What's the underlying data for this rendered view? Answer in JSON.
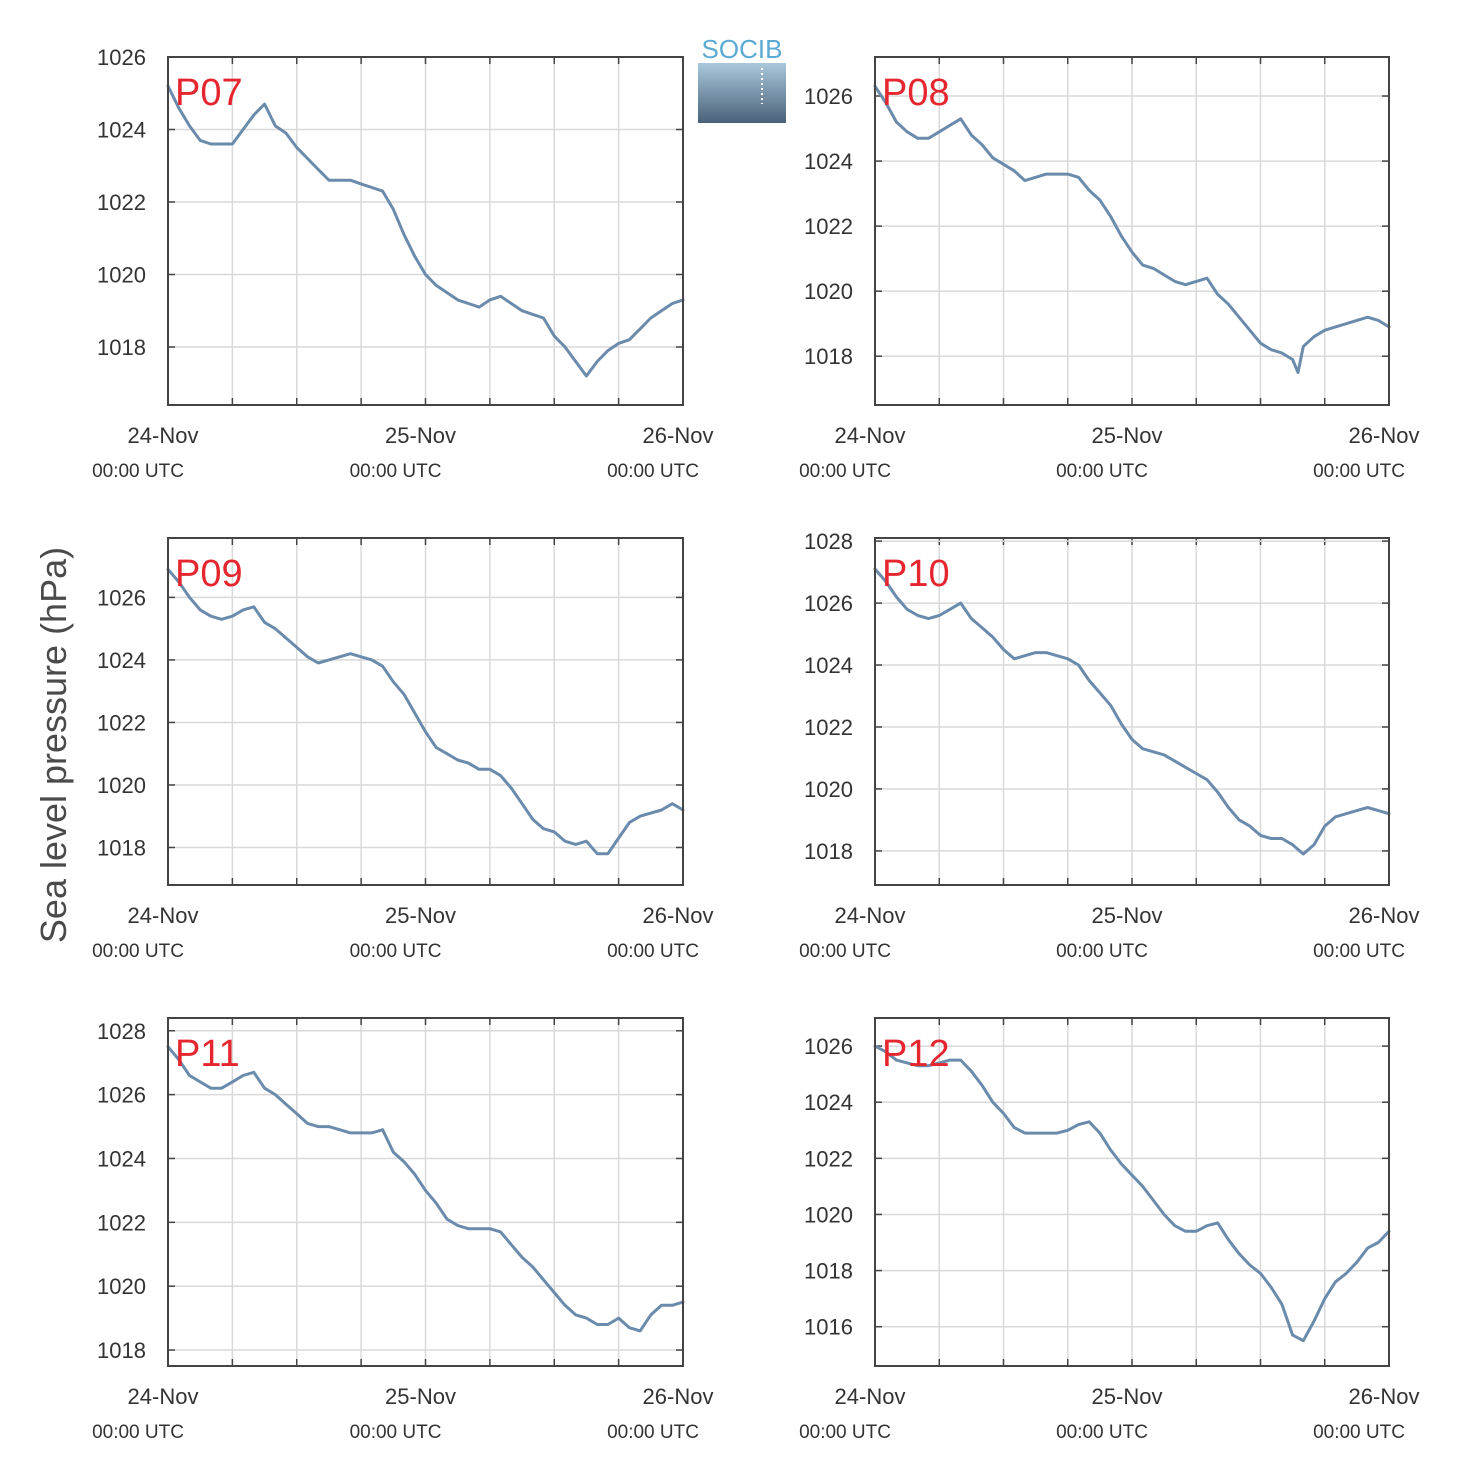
{
  "ylabel": "Sea level pressure (hPa)",
  "logo": {
    "text": "SOCIB"
  },
  "colors": {
    "line": "#6a8bab",
    "grid": "#d9d9d9",
    "frame": "#444444",
    "label": "#e5262e",
    "logo_text": "#5aaad4",
    "logo_top": "#a9c8dc",
    "logo_bottom": "#4a6178"
  },
  "x_ticks": [
    {
      "day": "24-Nov",
      "time": "00:00 UTC"
    },
    {
      "day": "25-Nov",
      "time": "00:00 UTC"
    },
    {
      "day": "26-Nov",
      "time": "00:00 UTC"
    }
  ],
  "chart_data": [
    {
      "type": "line",
      "label": "P07",
      "xlim": [
        0,
        48
      ],
      "ylim": [
        1016.4,
        1026
      ],
      "yticks": [
        1018,
        1020,
        1022,
        1024,
        1026
      ],
      "x": [
        0,
        1,
        2,
        3,
        4,
        5,
        6,
        7,
        8,
        9,
        10,
        11,
        12,
        13,
        14,
        15,
        16,
        17,
        18,
        19,
        20,
        21,
        22,
        23,
        24,
        25,
        26,
        27,
        28,
        29,
        30,
        31,
        32,
        33,
        34,
        35,
        36,
        37,
        38,
        39,
        40,
        41,
        42,
        43,
        44,
        45,
        46,
        47,
        48
      ],
      "y": [
        1025.2,
        1024.6,
        1024.1,
        1023.7,
        1023.6,
        1023.6,
        1023.6,
        1024.0,
        1024.4,
        1024.7,
        1024.1,
        1023.9,
        1023.5,
        1023.2,
        1022.9,
        1022.6,
        1022.6,
        1022.6,
        1022.5,
        1022.4,
        1022.3,
        1021.8,
        1021.1,
        1020.5,
        1020.0,
        1019.7,
        1019.5,
        1019.3,
        1019.2,
        1019.1,
        1019.3,
        1019.4,
        1019.2,
        1019.0,
        1018.9,
        1018.8,
        1018.3,
        1018.0,
        1017.6,
        1017.2,
        1017.6,
        1017.9,
        1018.1,
        1018.2,
        1018.5,
        1018.8,
        1019.0,
        1019.2,
        1019.3
      ]
    },
    {
      "type": "line",
      "label": "P08",
      "xlim": [
        0,
        48
      ],
      "ylim": [
        1016.5,
        1027.2
      ],
      "yticks": [
        1018,
        1020,
        1022,
        1024,
        1026
      ],
      "x": [
        0,
        1,
        2,
        3,
        4,
        5,
        6,
        7,
        8,
        9,
        10,
        11,
        12,
        13,
        14,
        15,
        16,
        17,
        18,
        19,
        20,
        21,
        22,
        23,
        24,
        25,
        26,
        27,
        28,
        29,
        30,
        31,
        32,
        33,
        34,
        35,
        36,
        37,
        38,
        39,
        39.5,
        40,
        41,
        42,
        43,
        44,
        45,
        46,
        47,
        48
      ],
      "y": [
        1026.3,
        1025.8,
        1025.2,
        1024.9,
        1024.7,
        1024.7,
        1024.9,
        1025.1,
        1025.3,
        1024.8,
        1024.5,
        1024.1,
        1023.9,
        1023.7,
        1023.4,
        1023.5,
        1023.6,
        1023.6,
        1023.6,
        1023.5,
        1023.1,
        1022.8,
        1022.3,
        1021.7,
        1021.2,
        1020.8,
        1020.7,
        1020.5,
        1020.3,
        1020.2,
        1020.3,
        1020.4,
        1019.9,
        1019.6,
        1019.2,
        1018.8,
        1018.4,
        1018.2,
        1018.1,
        1017.9,
        1017.5,
        1018.3,
        1018.6,
        1018.8,
        1018.9,
        1019.0,
        1019.1,
        1019.2,
        1019.1,
        1018.9
      ]
    },
    {
      "type": "line",
      "label": "P09",
      "xlim": [
        0,
        48
      ],
      "ylim": [
        1016.8,
        1027.9
      ],
      "yticks": [
        1018,
        1020,
        1022,
        1024,
        1026
      ],
      "x": [
        0,
        1,
        2,
        3,
        4,
        5,
        6,
        7,
        8,
        9,
        10,
        11,
        12,
        13,
        14,
        15,
        16,
        17,
        18,
        19,
        20,
        21,
        22,
        23,
        24,
        25,
        26,
        27,
        28,
        29,
        30,
        31,
        32,
        33,
        34,
        35,
        36,
        37,
        38,
        39,
        40,
        41,
        42,
        43,
        44,
        45,
        46,
        47,
        48
      ],
      "y": [
        1026.9,
        1026.5,
        1026.0,
        1025.6,
        1025.4,
        1025.3,
        1025.4,
        1025.6,
        1025.7,
        1025.2,
        1025.0,
        1024.7,
        1024.4,
        1024.1,
        1023.9,
        1024.0,
        1024.1,
        1024.2,
        1024.1,
        1024.0,
        1023.8,
        1023.3,
        1022.9,
        1022.3,
        1021.7,
        1021.2,
        1021.0,
        1020.8,
        1020.7,
        1020.5,
        1020.5,
        1020.3,
        1019.9,
        1019.4,
        1018.9,
        1018.6,
        1018.5,
        1018.2,
        1018.1,
        1018.2,
        1017.8,
        1017.8,
        1018.3,
        1018.8,
        1019.0,
        1019.1,
        1019.2,
        1019.4,
        1019.2
      ]
    },
    {
      "type": "line",
      "label": "P10",
      "xlim": [
        0,
        48
      ],
      "ylim": [
        1016.9,
        1028.1
      ],
      "yticks": [
        1018,
        1020,
        1022,
        1024,
        1026,
        1028
      ],
      "x": [
        0,
        1,
        2,
        3,
        4,
        5,
        6,
        7,
        8,
        9,
        10,
        11,
        12,
        13,
        14,
        15,
        16,
        17,
        18,
        19,
        20,
        21,
        22,
        23,
        24,
        25,
        26,
        27,
        28,
        29,
        30,
        31,
        32,
        33,
        34,
        35,
        36,
        37,
        38,
        39,
        40,
        41,
        42,
        43,
        44,
        45,
        46,
        47,
        48
      ],
      "y": [
        1027.1,
        1026.7,
        1026.2,
        1025.8,
        1025.6,
        1025.5,
        1025.6,
        1025.8,
        1026.0,
        1025.5,
        1025.2,
        1024.9,
        1024.5,
        1024.2,
        1024.3,
        1024.4,
        1024.4,
        1024.3,
        1024.2,
        1024.0,
        1023.5,
        1023.1,
        1022.7,
        1022.1,
        1021.6,
        1021.3,
        1021.2,
        1021.1,
        1020.9,
        1020.7,
        1020.5,
        1020.3,
        1019.9,
        1019.4,
        1019.0,
        1018.8,
        1018.5,
        1018.4,
        1018.4,
        1018.2,
        1017.9,
        1018.2,
        1018.8,
        1019.1,
        1019.2,
        1019.3,
        1019.4,
        1019.3,
        1019.2
      ]
    },
    {
      "type": "line",
      "label": "P11",
      "xlim": [
        0,
        48
      ],
      "ylim": [
        1017.5,
        1028.4
      ],
      "yticks": [
        1018,
        1020,
        1022,
        1024,
        1026,
        1028
      ],
      "x": [
        0,
        1,
        2,
        3,
        4,
        5,
        6,
        7,
        8,
        9,
        10,
        11,
        12,
        13,
        14,
        15,
        16,
        17,
        18,
        19,
        20,
        21,
        22,
        23,
        24,
        25,
        26,
        27,
        28,
        29,
        30,
        31,
        32,
        33,
        34,
        35,
        36,
        37,
        38,
        39,
        40,
        41,
        42,
        43,
        44,
        45,
        46,
        47,
        48
      ],
      "y": [
        1027.5,
        1027.1,
        1026.6,
        1026.4,
        1026.2,
        1026.2,
        1026.4,
        1026.6,
        1026.7,
        1026.2,
        1026.0,
        1025.7,
        1025.4,
        1025.1,
        1025.0,
        1025.0,
        1024.9,
        1024.8,
        1024.8,
        1024.8,
        1024.9,
        1024.2,
        1023.9,
        1023.5,
        1023.0,
        1022.6,
        1022.1,
        1021.9,
        1021.8,
        1021.8,
        1021.8,
        1021.7,
        1021.3,
        1020.9,
        1020.6,
        1020.2,
        1019.8,
        1019.4,
        1019.1,
        1019.0,
        1018.8,
        1018.8,
        1019.0,
        1018.7,
        1018.6,
        1019.1,
        1019.4,
        1019.4,
        1019.5
      ]
    },
    {
      "type": "line",
      "label": "P12",
      "xlim": [
        0,
        48
      ],
      "ylim": [
        1014.6,
        1027.0
      ],
      "yticks": [
        1016,
        1018,
        1020,
        1022,
        1024,
        1026
      ],
      "x": [
        0,
        1,
        2,
        3,
        4,
        5,
        6,
        7,
        8,
        9,
        10,
        11,
        12,
        13,
        14,
        15,
        16,
        17,
        18,
        19,
        20,
        21,
        22,
        23,
        24,
        25,
        26,
        27,
        28,
        29,
        30,
        31,
        32,
        33,
        34,
        35,
        36,
        37,
        38,
        39,
        40,
        41,
        42,
        43,
        44,
        45,
        46,
        47,
        48
      ],
      "y": [
        1026.0,
        1025.8,
        1025.5,
        1025.4,
        1025.3,
        1025.3,
        1025.4,
        1025.5,
        1025.5,
        1025.1,
        1024.6,
        1024.0,
        1023.6,
        1023.1,
        1022.9,
        1022.9,
        1022.9,
        1022.9,
        1023.0,
        1023.2,
        1023.3,
        1022.9,
        1022.3,
        1021.8,
        1021.4,
        1021.0,
        1020.5,
        1020.0,
        1019.6,
        1019.4,
        1019.4,
        1019.6,
        1019.7,
        1019.1,
        1018.6,
        1018.2,
        1017.9,
        1017.4,
        1016.8,
        1015.7,
        1015.5,
        1016.2,
        1017.0,
        1017.6,
        1017.9,
        1018.3,
        1018.8,
        1019.0,
        1019.4
      ]
    }
  ]
}
